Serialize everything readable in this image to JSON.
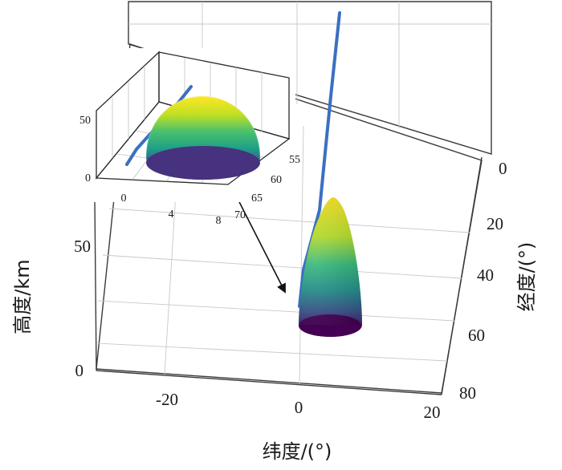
{
  "main_plot": {
    "z_axis": {
      "title": "高度/km",
      "ticks": [
        "0",
        "50"
      ]
    },
    "x_axis": {
      "title": "纬度/(°)",
      "ticks": [
        "-20",
        "0",
        "20"
      ]
    },
    "y_axis": {
      "title": "经度/(°)",
      "ticks": [
        "0",
        "20",
        "40",
        "60",
        "80"
      ]
    },
    "surface_shape": "cone",
    "colormap": [
      "#fde725",
      "#35b779",
      "#26828e",
      "#3e4989",
      "#440154"
    ],
    "trajectory_color": "#3a70c0",
    "grid": true
  },
  "inset": {
    "z_ticks": [
      "0",
      "50"
    ],
    "x_ticks": [
      "0",
      "4",
      "8"
    ],
    "y_ticks": [
      "55",
      "60",
      "65",
      "70"
    ],
    "surface_shape": "dome",
    "grid": true
  },
  "annotation": {
    "type": "arrow",
    "meaning": "inset-zoom"
  }
}
